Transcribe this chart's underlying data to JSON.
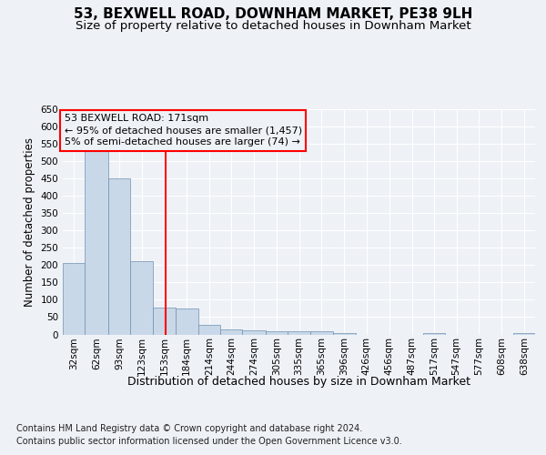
{
  "title": "53, BEXWELL ROAD, DOWNHAM MARKET, PE38 9LH",
  "subtitle": "Size of property relative to detached houses in Downham Market",
  "xlabel": "Distribution of detached houses by size in Downham Market",
  "ylabel": "Number of detached properties",
  "footnote1": "Contains HM Land Registry data © Crown copyright and database right 2024.",
  "footnote2": "Contains public sector information licensed under the Open Government Licence v3.0.",
  "annotation_line1": "53 BEXWELL ROAD: 171sqm",
  "annotation_line2": "← 95% of detached houses are smaller (1,457)",
  "annotation_line3": "5% of semi-detached houses are larger (74) →",
  "bar_color": "#c8d8e8",
  "bar_edge_color": "#7090b0",
  "red_line_x": 171,
  "categories": [
    "32sqm",
    "62sqm",
    "93sqm",
    "123sqm",
    "153sqm",
    "184sqm",
    "214sqm",
    "244sqm",
    "274sqm",
    "305sqm",
    "335sqm",
    "365sqm",
    "396sqm",
    "426sqm",
    "456sqm",
    "487sqm",
    "517sqm",
    "547sqm",
    "577sqm",
    "608sqm",
    "638sqm"
  ],
  "bin_edges": [
    32,
    62,
    93,
    123,
    153,
    184,
    214,
    244,
    274,
    305,
    335,
    365,
    396,
    426,
    456,
    487,
    517,
    547,
    577,
    608,
    638,
    668
  ],
  "values": [
    207,
    530,
    450,
    212,
    78,
    75,
    27,
    15,
    13,
    8,
    8,
    8,
    5,
    0,
    0,
    0,
    5,
    0,
    0,
    0,
    5
  ],
  "ylim": [
    0,
    650
  ],
  "yticks": [
    0,
    50,
    100,
    150,
    200,
    250,
    300,
    350,
    400,
    450,
    500,
    550,
    600,
    650
  ],
  "background_color": "#eef2f7",
  "grid_color": "#ffffff",
  "title_fontsize": 11,
  "subtitle_fontsize": 9.5,
  "xlabel_fontsize": 9,
  "ylabel_fontsize": 8.5,
  "tick_fontsize": 7.5,
  "footnote_fontsize": 7
}
